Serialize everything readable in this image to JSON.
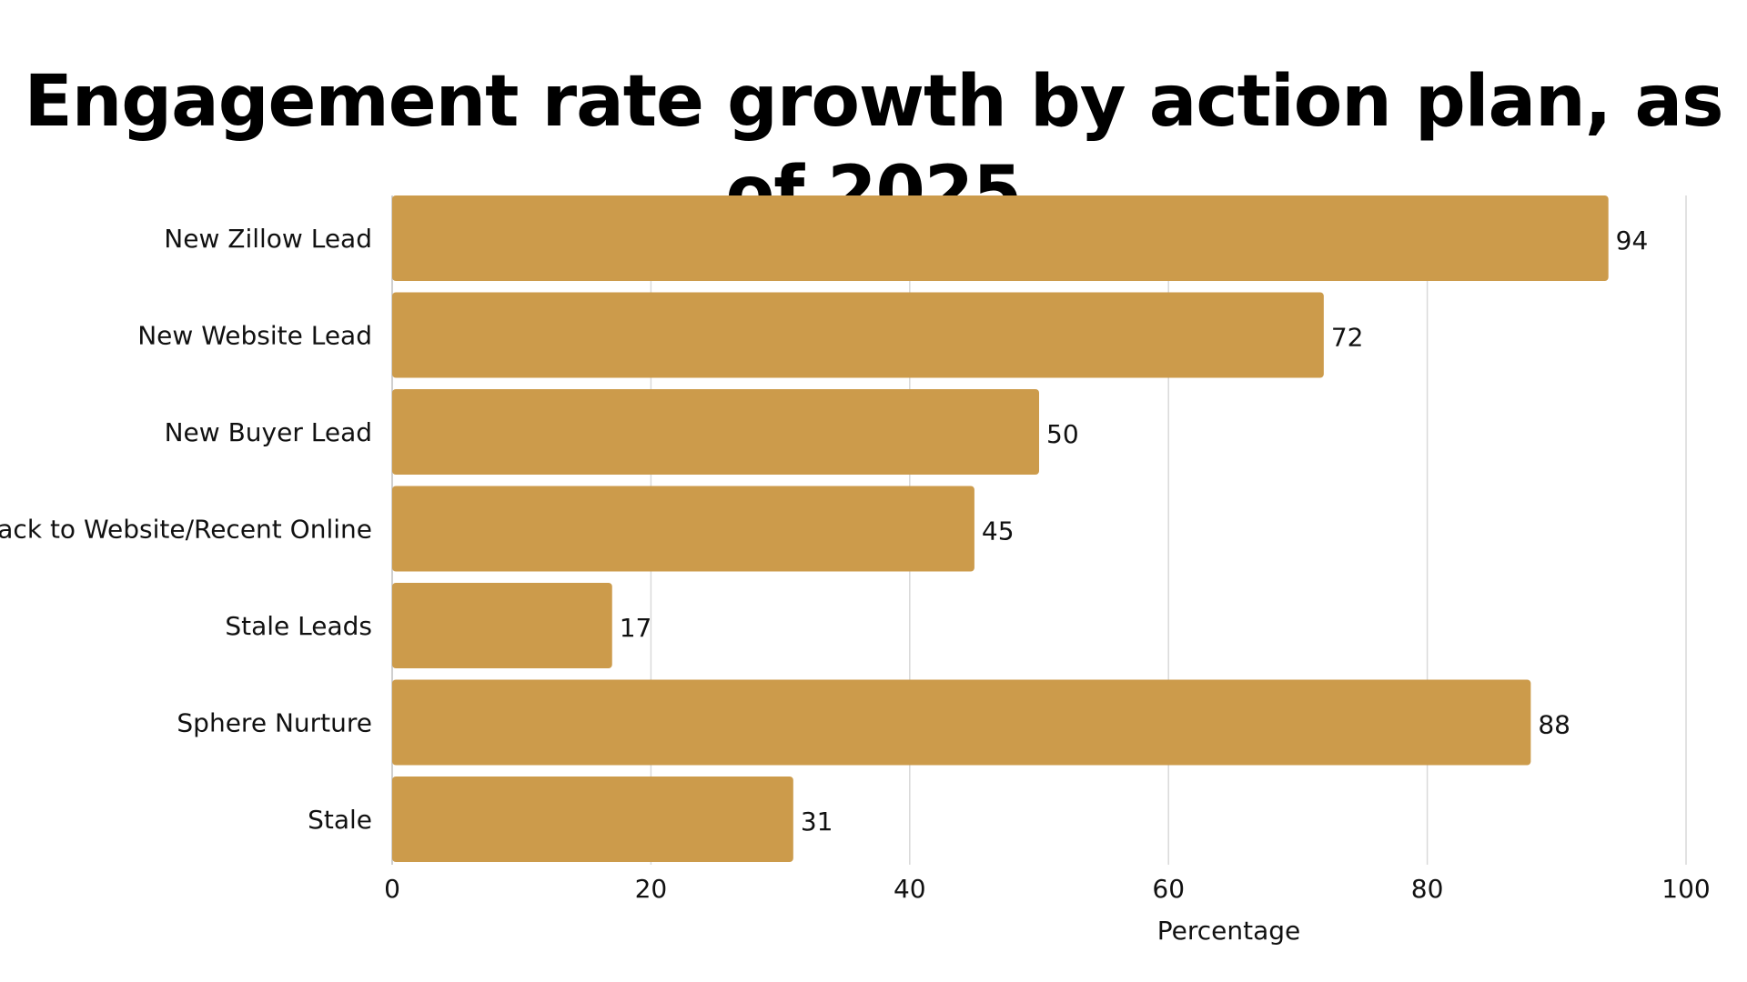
{
  "chart_data": {
    "type": "bar",
    "orientation": "horizontal",
    "title": "Engagement rate growth by action plan, as of 2025",
    "xlabel": "Percentage",
    "ylabel": "",
    "categories": [
      "New Zillow Lead",
      "New Website Lead",
      "New Buyer Lead",
      "Back to Website/Recent Online",
      "Stale Leads",
      "Sphere Nurture",
      "Stale"
    ],
    "values": [
      94,
      72,
      50,
      45,
      17,
      88,
      31
    ],
    "xlim": [
      0,
      100
    ],
    "xticks": [
      "0",
      "20",
      "40",
      "60",
      "80",
      "100"
    ],
    "grid": "vertical",
    "data_labels": true,
    "colors": {
      "bar": "#CC9B4B",
      "grid": "#D9D9D9",
      "text": "#111111"
    }
  }
}
